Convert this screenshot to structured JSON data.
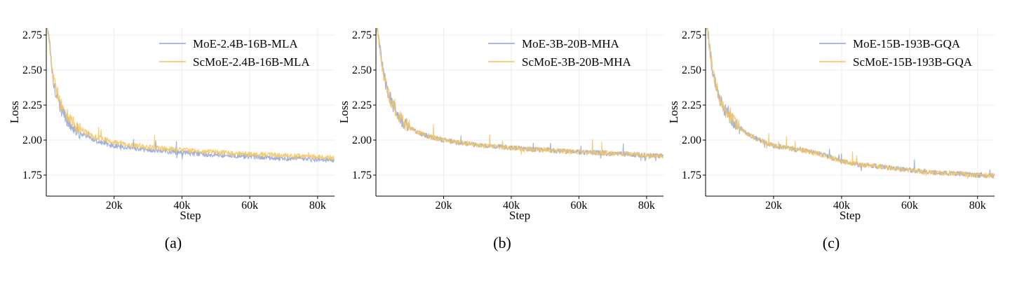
{
  "chart_data": [
    {
      "type": "line",
      "caption": "(a)",
      "xlabel": "Step",
      "ylabel": "Loss",
      "xlim": [
        0,
        85000
      ],
      "ylim": [
        1.6,
        2.8
      ],
      "xticks": [
        20000,
        40000,
        60000,
        80000
      ],
      "xtick_labels": [
        "20k",
        "40k",
        "60k",
        "80k"
      ],
      "yticks": [
        1.75,
        2.0,
        2.25,
        2.5,
        2.75
      ],
      "ytick_labels": [
        "1.75",
        "2.00",
        "2.25",
        "2.50",
        "2.75"
      ],
      "grid": true,
      "legend_position": "top-right",
      "series": [
        {
          "name": "MoE-2.4B-16B-MLA",
          "color": "#8ea3d8",
          "x": [
            500,
            2000,
            4000,
            6000,
            8000,
            10000,
            12000,
            15000,
            20000,
            25000,
            30000,
            35000,
            40000,
            45000,
            50000,
            55000,
            60000,
            65000,
            70000,
            75000,
            80000,
            85000
          ],
          "y": [
            2.8,
            2.42,
            2.24,
            2.15,
            2.09,
            2.05,
            2.02,
            1.99,
            1.96,
            1.94,
            1.93,
            1.92,
            1.91,
            1.9,
            1.895,
            1.89,
            1.88,
            1.875,
            1.87,
            1.865,
            1.86,
            1.855
          ]
        },
        {
          "name": "ScMoE-2.4B-16B-MLA",
          "color": "#f5c35a",
          "x": [
            500,
            2000,
            4000,
            6000,
            8000,
            10000,
            12000,
            15000,
            20000,
            25000,
            30000,
            35000,
            40000,
            45000,
            50000,
            55000,
            60000,
            65000,
            70000,
            75000,
            80000,
            85000
          ],
          "y": [
            2.8,
            2.45,
            2.27,
            2.18,
            2.12,
            2.08,
            2.05,
            2.02,
            1.985,
            1.965,
            1.95,
            1.94,
            1.93,
            1.92,
            1.915,
            1.905,
            1.9,
            1.895,
            1.89,
            1.885,
            1.88,
            1.875
          ]
        }
      ]
    },
    {
      "type": "line",
      "caption": "(b)",
      "xlabel": "Step",
      "ylabel": "Loss",
      "xlim": [
        0,
        85000
      ],
      "ylim": [
        1.6,
        2.8
      ],
      "xticks": [
        20000,
        40000,
        60000,
        80000
      ],
      "xtick_labels": [
        "20k",
        "40k",
        "60k",
        "80k"
      ],
      "yticks": [
        1.75,
        2.0,
        2.25,
        2.5,
        2.75
      ],
      "ytick_labels": [
        "1.75",
        "2.00",
        "2.25",
        "2.50",
        "2.75"
      ],
      "grid": true,
      "legend_position": "top-right",
      "series": [
        {
          "name": "MoE-3B-20B-MHA",
          "color": "#8ea3d8",
          "x": [
            500,
            2000,
            4000,
            6000,
            8000,
            10000,
            12000,
            15000,
            20000,
            25000,
            30000,
            35000,
            40000,
            45000,
            50000,
            55000,
            60000,
            65000,
            70000,
            75000,
            80000,
            85000
          ],
          "y": [
            2.8,
            2.5,
            2.3,
            2.2,
            2.13,
            2.09,
            2.06,
            2.03,
            2.0,
            1.98,
            1.965,
            1.955,
            1.945,
            1.935,
            1.93,
            1.92,
            1.915,
            1.91,
            1.905,
            1.9,
            1.89,
            1.885
          ]
        },
        {
          "name": "ScMoE-3B-20B-MHA",
          "color": "#f5c35a",
          "x": [
            500,
            2000,
            4000,
            6000,
            8000,
            10000,
            12000,
            15000,
            20000,
            25000,
            30000,
            35000,
            40000,
            45000,
            50000,
            55000,
            60000,
            65000,
            70000,
            75000,
            80000,
            85000
          ],
          "y": [
            2.8,
            2.5,
            2.3,
            2.2,
            2.13,
            2.09,
            2.06,
            2.03,
            2.0,
            1.98,
            1.965,
            1.955,
            1.945,
            1.935,
            1.93,
            1.92,
            1.915,
            1.91,
            1.905,
            1.9,
            1.89,
            1.885
          ]
        }
      ]
    },
    {
      "type": "line",
      "caption": "(c)",
      "xlabel": "Step",
      "ylabel": "Loss",
      "xlim": [
        0,
        85000
      ],
      "ylim": [
        1.6,
        2.8
      ],
      "xticks": [
        20000,
        40000,
        60000,
        80000
      ],
      "xtick_labels": [
        "20k",
        "40k",
        "60k",
        "80k"
      ],
      "yticks": [
        1.75,
        2.0,
        2.25,
        2.5,
        2.75
      ],
      "ytick_labels": [
        "1.75",
        "2.00",
        "2.25",
        "2.50",
        "2.75"
      ],
      "grid": true,
      "legend_position": "top-right",
      "series": [
        {
          "name": "MoE-15B-193B-GQA",
          "color": "#8ea3d8",
          "x": [
            500,
            2000,
            4000,
            6000,
            8000,
            10000,
            12000,
            15000,
            20000,
            25000,
            30000,
            35000,
            40000,
            45000,
            50000,
            55000,
            60000,
            65000,
            70000,
            75000,
            80000,
            85000
          ],
          "y": [
            2.8,
            2.5,
            2.3,
            2.2,
            2.14,
            2.09,
            2.05,
            2.01,
            1.96,
            1.94,
            1.92,
            1.89,
            1.85,
            1.825,
            1.815,
            1.8,
            1.785,
            1.775,
            1.765,
            1.76,
            1.75,
            1.745
          ]
        },
        {
          "name": "ScMoE-15B-193B-GQA",
          "color": "#f5c35a",
          "x": [
            500,
            2000,
            4000,
            6000,
            8000,
            10000,
            12000,
            15000,
            20000,
            25000,
            30000,
            35000,
            40000,
            45000,
            50000,
            55000,
            60000,
            65000,
            70000,
            75000,
            80000,
            85000
          ],
          "y": [
            2.8,
            2.5,
            2.3,
            2.2,
            2.14,
            2.09,
            2.05,
            2.01,
            1.96,
            1.94,
            1.92,
            1.89,
            1.85,
            1.825,
            1.815,
            1.8,
            1.785,
            1.775,
            1.765,
            1.76,
            1.75,
            1.745
          ]
        }
      ]
    }
  ]
}
